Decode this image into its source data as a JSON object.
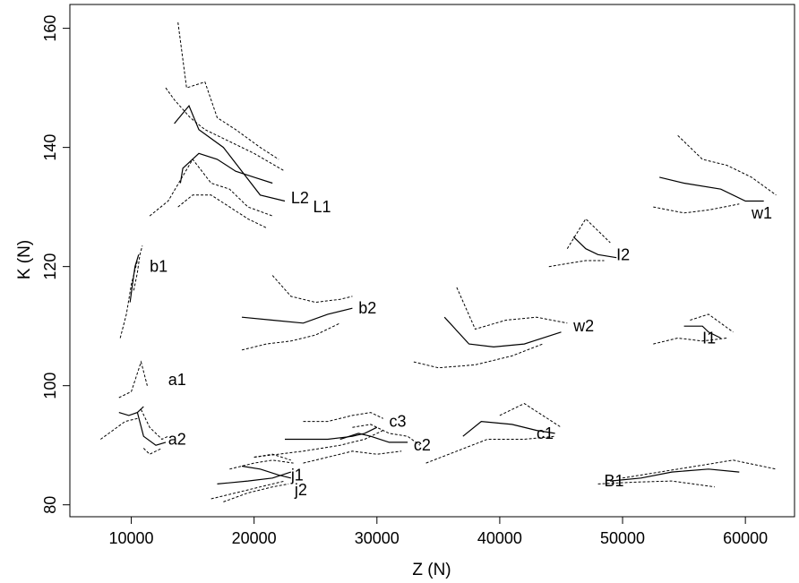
{
  "chart_data": {
    "type": "line",
    "title": "",
    "xlabel": "Z (N)",
    "ylabel": "K (N)",
    "xlim": [
      5000,
      64000
    ],
    "ylim": [
      78,
      164
    ],
    "xticks": [
      10000,
      20000,
      30000,
      40000,
      50000,
      60000
    ],
    "yticks": [
      80,
      100,
      120,
      140,
      160
    ],
    "grid": false,
    "legend": "none",
    "series_styles": [
      "mean (solid)",
      "bounds (dotted)"
    ],
    "series": [
      {
        "name": "L2",
        "label_pos": [
          23000,
          131.5
        ],
        "mean": [
          [
            14000,
            134
          ],
          [
            14200,
            136.5
          ],
          [
            15500,
            139
          ],
          [
            17000,
            138
          ],
          [
            18500,
            136
          ],
          [
            20000,
            135
          ],
          [
            21500,
            134
          ]
        ],
        "lower": [
          [
            13800,
            130
          ],
          [
            15000,
            132
          ],
          [
            16500,
            132
          ],
          [
            18000,
            130
          ],
          [
            19500,
            128
          ],
          [
            21000,
            126.5
          ]
        ],
        "upper": [
          [
            12800,
            150
          ],
          [
            13500,
            148
          ],
          [
            14800,
            145
          ],
          [
            16000,
            143
          ],
          [
            18000,
            141
          ],
          [
            20000,
            139
          ],
          [
            22500,
            136
          ]
        ]
      },
      {
        "name": "L1",
        "label_pos": [
          24800,
          130
        ],
        "mean": [
          [
            13500,
            144
          ],
          [
            14700,
            147
          ],
          [
            15500,
            143
          ],
          [
            17500,
            140
          ],
          [
            19000,
            136
          ],
          [
            20500,
            132
          ],
          [
            22500,
            131
          ]
        ],
        "lower": [
          [
            11500,
            128.5
          ],
          [
            13000,
            131
          ],
          [
            15000,
            138
          ],
          [
            16500,
            134
          ],
          [
            18000,
            133
          ],
          [
            19500,
            130
          ],
          [
            21500,
            128.5
          ]
        ],
        "upper": [
          [
            13800,
            161
          ],
          [
            14500,
            150
          ],
          [
            16000,
            151
          ],
          [
            17000,
            145
          ],
          [
            18500,
            143
          ],
          [
            20500,
            140
          ],
          [
            22000,
            138
          ]
        ]
      },
      {
        "name": "b1",
        "label_pos": [
          11500,
          120
        ],
        "mean": [
          [
            9900,
            114
          ],
          [
            10100,
            117
          ],
          [
            10300,
            120
          ],
          [
            10600,
            122
          ]
        ],
        "lower": [
          [
            9100,
            108
          ],
          [
            9600,
            112
          ],
          [
            10000,
            117
          ],
          [
            10500,
            121
          ]
        ],
        "upper": [
          [
            10200,
            116
          ],
          [
            10500,
            119
          ],
          [
            10700,
            122
          ],
          [
            10900,
            123.5
          ]
        ]
      },
      {
        "name": "b2",
        "label_pos": [
          28500,
          113
        ],
        "mean": [
          [
            19000,
            111.5
          ],
          [
            21500,
            111
          ],
          [
            24000,
            110.5
          ],
          [
            26000,
            112
          ],
          [
            28000,
            113
          ]
        ],
        "lower": [
          [
            19000,
            106
          ],
          [
            21000,
            107
          ],
          [
            23000,
            107.5
          ],
          [
            25000,
            108.5
          ],
          [
            27000,
            110.5
          ]
        ],
        "upper": [
          [
            21500,
            118.5
          ],
          [
            23000,
            115
          ],
          [
            25000,
            114
          ],
          [
            27000,
            114.5
          ],
          [
            28000,
            115
          ]
        ]
      },
      {
        "name": "a1",
        "label_pos": [
          13000,
          101
        ],
        "mean": [
          [
            9000,
            95.5
          ],
          [
            9800,
            95
          ],
          [
            10500,
            95.5
          ],
          [
            11000,
            96.5
          ]
        ],
        "lower": [
          [
            7500,
            91
          ],
          [
            8500,
            92.5
          ],
          [
            9500,
            94
          ],
          [
            10500,
            94.5
          ]
        ],
        "upper": [
          [
            9000,
            98
          ],
          [
            10000,
            99
          ],
          [
            10800,
            104
          ],
          [
            11300,
            100
          ]
        ]
      },
      {
        "name": "a2",
        "label_pos": [
          13000,
          91
        ],
        "mean": [
          [
            10500,
            95.5
          ],
          [
            11000,
            91.5
          ],
          [
            12000,
            90
          ],
          [
            12800,
            90.5
          ]
        ],
        "lower": [
          [
            11000,
            89.5
          ],
          [
            11500,
            88.5
          ],
          [
            12000,
            89
          ],
          [
            12500,
            89.5
          ]
        ],
        "upper": [
          [
            10800,
            96
          ],
          [
            11500,
            93
          ],
          [
            12500,
            91
          ],
          [
            13000,
            91.5
          ]
        ]
      },
      {
        "name": "c3",
        "label_pos": [
          31000,
          94
        ],
        "mean": [
          [
            22500,
            91
          ],
          [
            26000,
            91
          ],
          [
            28000,
            91.5
          ],
          [
            29000,
            92
          ],
          [
            30000,
            93
          ]
        ],
        "lower": [
          [
            20000,
            88
          ],
          [
            24000,
            89
          ],
          [
            27000,
            90
          ],
          [
            29000,
            91
          ],
          [
            30500,
            92.5
          ]
        ],
        "upper": [
          [
            24000,
            94
          ],
          [
            26000,
            94
          ],
          [
            28000,
            95
          ],
          [
            29500,
            95.5
          ],
          [
            30500,
            94.5
          ]
        ]
      },
      {
        "name": "c2",
        "label_pos": [
          33000,
          90
        ],
        "mean": [
          [
            27000,
            91
          ],
          [
            28500,
            92
          ],
          [
            29500,
            91.5
          ],
          [
            31000,
            90.5
          ],
          [
            32500,
            90.5
          ]
        ],
        "lower": [
          [
            24000,
            87
          ],
          [
            26000,
            88
          ],
          [
            28000,
            89
          ],
          [
            30000,
            88.5
          ],
          [
            32000,
            89
          ]
        ],
        "upper": [
          [
            28000,
            93
          ],
          [
            29500,
            93.5
          ],
          [
            31000,
            92
          ],
          [
            32500,
            91.5
          ],
          [
            33500,
            90
          ]
        ]
      },
      {
        "name": "c1",
        "label_pos": [
          43000,
          92
        ],
        "mean": [
          [
            37000,
            91.5
          ],
          [
            38500,
            94
          ],
          [
            41000,
            93.5
          ],
          [
            43000,
            92.5
          ],
          [
            44500,
            92
          ]
        ],
        "lower": [
          [
            34000,
            87
          ],
          [
            36500,
            89
          ],
          [
            39000,
            91
          ],
          [
            42000,
            91
          ],
          [
            44500,
            91.5
          ]
        ],
        "upper": [
          [
            40000,
            95
          ],
          [
            42000,
            97
          ],
          [
            43500,
            95
          ],
          [
            45000,
            93
          ]
        ]
      },
      {
        "name": "j1",
        "label_pos": [
          23000,
          85
        ],
        "mean": [
          [
            17000,
            83.5
          ],
          [
            19500,
            84
          ],
          [
            21500,
            84.5
          ],
          [
            23000,
            85.5
          ]
        ],
        "lower": [
          [
            16500,
            81
          ],
          [
            18500,
            82
          ],
          [
            20500,
            83
          ],
          [
            22500,
            84
          ]
        ],
        "upper": [
          [
            18000,
            86
          ],
          [
            20000,
            87
          ],
          [
            21500,
            87.5
          ],
          [
            23200,
            87
          ]
        ]
      },
      {
        "name": "j2",
        "label_pos": [
          23300,
          82.5
        ],
        "mean": [
          [
            19000,
            86.5
          ],
          [
            20500,
            86
          ],
          [
            22000,
            85
          ],
          [
            23000,
            84.5
          ]
        ],
        "lower": [
          [
            17500,
            80.5
          ],
          [
            19500,
            82
          ],
          [
            21500,
            83
          ],
          [
            22800,
            83.5
          ]
        ],
        "upper": [
          [
            20000,
            88
          ],
          [
            21500,
            88.5
          ],
          [
            23000,
            87.5
          ]
        ]
      },
      {
        "name": "w1",
        "label_pos": [
          60500,
          129
        ],
        "mean": [
          [
            53000,
            135
          ],
          [
            55000,
            134
          ],
          [
            58000,
            133
          ],
          [
            60000,
            131
          ],
          [
            61500,
            131
          ]
        ],
        "lower": [
          [
            52500,
            130
          ],
          [
            55000,
            129
          ],
          [
            57000,
            129.5
          ],
          [
            59500,
            130.5
          ]
        ],
        "upper": [
          [
            54500,
            142
          ],
          [
            56500,
            138
          ],
          [
            58500,
            137
          ],
          [
            60500,
            135
          ],
          [
            62500,
            132
          ]
        ]
      },
      {
        "name": "I2",
        "label_pos": [
          49500,
          122
        ],
        "mean": [
          [
            46000,
            125
          ],
          [
            47000,
            123
          ],
          [
            48000,
            122
          ],
          [
            49500,
            121.5
          ]
        ],
        "lower": [
          [
            44000,
            120
          ],
          [
            45500,
            120.5
          ],
          [
            47000,
            121
          ],
          [
            48500,
            121
          ]
        ],
        "upper": [
          [
            45500,
            123
          ],
          [
            47000,
            128
          ],
          [
            48000,
            126
          ],
          [
            49000,
            124
          ]
        ]
      },
      {
        "name": "w2",
        "label_pos": [
          46000,
          110
        ],
        "mean": [
          [
            35500,
            111.5
          ],
          [
            37500,
            107
          ],
          [
            39500,
            106.5
          ],
          [
            42000,
            107
          ],
          [
            45000,
            109
          ]
        ],
        "lower": [
          [
            33000,
            104
          ],
          [
            35000,
            103
          ],
          [
            38000,
            103.5
          ],
          [
            41000,
            105
          ],
          [
            43500,
            107
          ]
        ],
        "upper": [
          [
            36500,
            116.5
          ],
          [
            38000,
            109.5
          ],
          [
            40500,
            111
          ],
          [
            43000,
            111.5
          ],
          [
            45500,
            110.5
          ]
        ]
      },
      {
        "name": "I1",
        "label_pos": [
          56500,
          108
        ],
        "mean": [
          [
            55000,
            110
          ],
          [
            56500,
            110
          ],
          [
            57000,
            109
          ],
          [
            58000,
            108
          ]
        ],
        "lower": [
          [
            52500,
            107
          ],
          [
            54500,
            108
          ],
          [
            56500,
            107.5
          ],
          [
            58500,
            108
          ]
        ],
        "upper": [
          [
            55500,
            111
          ],
          [
            57000,
            112
          ],
          [
            58000,
            110.5
          ],
          [
            59000,
            109
          ]
        ]
      },
      {
        "name": "B1",
        "label_pos": [
          48500,
          84
        ],
        "mean": [
          [
            49000,
            84
          ],
          [
            51500,
            84.5
          ],
          [
            54000,
            85.5
          ],
          [
            57000,
            86
          ],
          [
            59500,
            85.5
          ]
        ],
        "lower": [
          [
            48000,
            83.5
          ],
          [
            51000,
            83.8
          ],
          [
            54000,
            84
          ],
          [
            57500,
            83
          ]
        ],
        "upper": [
          [
            50000,
            84.5
          ],
          [
            53000,
            85.5
          ],
          [
            56000,
            86.5
          ],
          [
            59000,
            87.5
          ],
          [
            62500,
            86
          ]
        ]
      }
    ]
  }
}
